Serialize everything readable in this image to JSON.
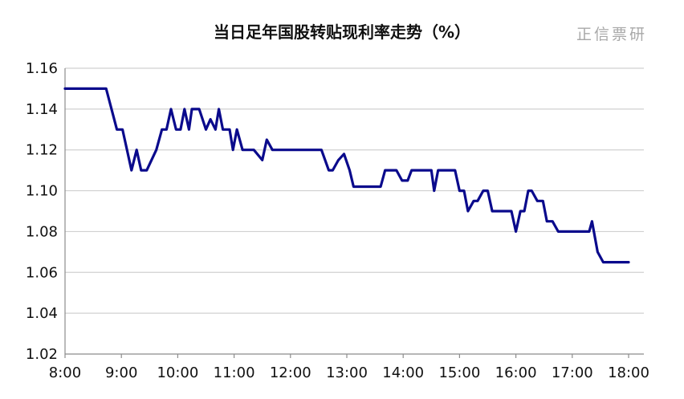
{
  "watermark": "正信票研",
  "chart_data": {
    "type": "line",
    "title": "当日足年国股转贴现利率走势（%）",
    "xlabel": "",
    "ylabel": "",
    "ylim": [
      1.02,
      1.16
    ],
    "yticks": [
      "1.02",
      "1.04",
      "1.06",
      "1.08",
      "1.10",
      "1.12",
      "1.14",
      "1.16"
    ],
    "xlim": [
      8,
      18.25
    ],
    "xticks": [
      "8:00",
      "9:00",
      "10:00",
      "11:00",
      "12:00",
      "13:00",
      "14:00",
      "15:00",
      "16:00",
      "17:00",
      "18:00"
    ],
    "grid": "horizontal",
    "color": "#0a0a8c",
    "series": [
      {
        "x": [
          8.0,
          8.73,
          8.92,
          9.02,
          9.18,
          9.27,
          9.35,
          9.45,
          9.62,
          9.72,
          9.8,
          9.88,
          9.97,
          10.05,
          10.12,
          10.2,
          10.25,
          10.38,
          10.5,
          10.58,
          10.67,
          10.73,
          10.8,
          10.92,
          10.98,
          11.05,
          11.15,
          11.25,
          11.35,
          11.5,
          11.58,
          11.68,
          11.78,
          12.0,
          12.5,
          12.55,
          12.68,
          12.75,
          12.85,
          12.95,
          13.05,
          13.12,
          13.6,
          13.68,
          13.88,
          13.98,
          14.08,
          14.15,
          14.38,
          14.5,
          14.55,
          14.62,
          14.92,
          15.0,
          15.08,
          15.15,
          15.25,
          15.32,
          15.42,
          15.5,
          15.58,
          15.92,
          16.0,
          16.08,
          16.15,
          16.22,
          16.28,
          16.38,
          16.48,
          16.55,
          16.65,
          16.75,
          16.88,
          17.3,
          17.35,
          17.45,
          17.55,
          17.65,
          18.0
        ],
        "y": [
          1.15,
          1.15,
          1.13,
          1.13,
          1.11,
          1.12,
          1.11,
          1.11,
          1.12,
          1.13,
          1.13,
          1.14,
          1.13,
          1.13,
          1.14,
          1.13,
          1.14,
          1.14,
          1.13,
          1.135,
          1.13,
          1.14,
          1.13,
          1.13,
          1.12,
          1.13,
          1.12,
          1.12,
          1.12,
          1.115,
          1.125,
          1.12,
          1.12,
          1.12,
          1.12,
          1.12,
          1.11,
          1.11,
          1.115,
          1.118,
          1.11,
          1.102,
          1.102,
          1.11,
          1.11,
          1.105,
          1.105,
          1.11,
          1.11,
          1.11,
          1.1,
          1.11,
          1.11,
          1.1,
          1.1,
          1.09,
          1.095,
          1.095,
          1.1,
          1.1,
          1.09,
          1.09,
          1.08,
          1.09,
          1.09,
          1.1,
          1.1,
          1.095,
          1.095,
          1.085,
          1.085,
          1.08,
          1.08,
          1.08,
          1.085,
          1.07,
          1.065,
          1.065,
          1.065
        ]
      }
    ]
  }
}
